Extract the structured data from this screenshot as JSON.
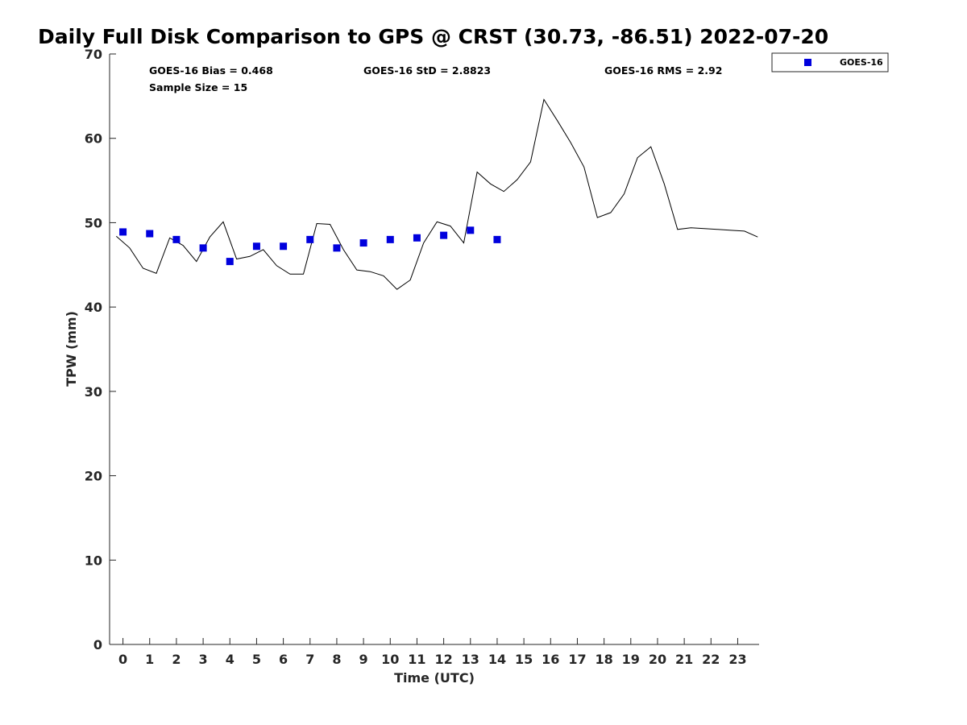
{
  "chart_data": {
    "type": "scatter",
    "title": "Daily Full Disk Comparison to GPS @ CRST (30.73, -86.51) 2022-07-20",
    "xlabel": "Time (UTC)",
    "ylabel": "TPW (mm)",
    "xlim": [
      -0.5,
      23.8
    ],
    "ylim": [
      0,
      70
    ],
    "xticks": [
      0,
      1,
      2,
      3,
      4,
      5,
      6,
      7,
      8,
      9,
      10,
      11,
      12,
      13,
      14,
      15,
      16,
      17,
      18,
      19,
      20,
      21,
      22,
      23
    ],
    "yticks": [
      0,
      10,
      20,
      30,
      40,
      50,
      60,
      70
    ],
    "grid": false,
    "legend_position": "top-right, outside plot",
    "stats": {
      "bias": "GOES-16 Bias = 0.468",
      "sample_size": "Sample Size = 15",
      "std": "GOES-16 StD = 2.8823",
      "rms": "GOES-16 RMS = 2.92"
    },
    "series": [
      {
        "name": "GOES-16",
        "kind": "scatter",
        "marker": "square",
        "color": "#0000dd",
        "x": [
          0,
          1,
          2,
          3,
          4,
          5,
          6,
          7,
          8,
          9,
          10,
          11,
          12,
          13,
          14
        ],
        "y": [
          48.9,
          48.7,
          48.0,
          47.0,
          45.4,
          47.2,
          47.2,
          48.0,
          47.0,
          47.6,
          48.0,
          48.2,
          48.5,
          49.1,
          48.0
        ]
      },
      {
        "kind": "line",
        "color": "#000000",
        "x": [
          -0.25,
          0.25,
          0.75,
          1.25,
          1.75,
          2.25,
          2.75,
          3.25,
          3.75,
          4.25,
          4.75,
          5.25,
          5.75,
          6.25,
          6.75,
          7.25,
          7.75,
          8.25,
          8.75,
          9.25,
          9.75,
          10.25,
          10.75,
          11.25,
          11.75,
          12.25,
          12.75,
          13.25,
          13.75,
          14.25,
          14.75,
          15.25,
          15.75,
          16.25,
          16.75,
          17.25,
          17.75,
          18.25,
          18.75,
          19.25,
          19.75,
          20.25,
          20.75,
          21.25,
          21.75,
          22.25,
          22.75,
          23.25,
          23.75
        ],
        "y": [
          48.4,
          47.0,
          44.6,
          44.0,
          48.2,
          47.3,
          45.4,
          48.3,
          50.1,
          45.7,
          46.0,
          46.8,
          44.9,
          43.9,
          43.9,
          49.9,
          49.8,
          46.8,
          44.4,
          44.2,
          43.7,
          42.1,
          43.2,
          47.6,
          50.1,
          49.6,
          47.6,
          56.0,
          54.6,
          53.7,
          55.1,
          57.2,
          64.6,
          62.1,
          59.5,
          56.6,
          50.6,
          51.2,
          53.4,
          57.7,
          59.0,
          54.6,
          49.2,
          49.4,
          49.3,
          49.2,
          49.1,
          49.0,
          48.3
        ]
      }
    ]
  }
}
